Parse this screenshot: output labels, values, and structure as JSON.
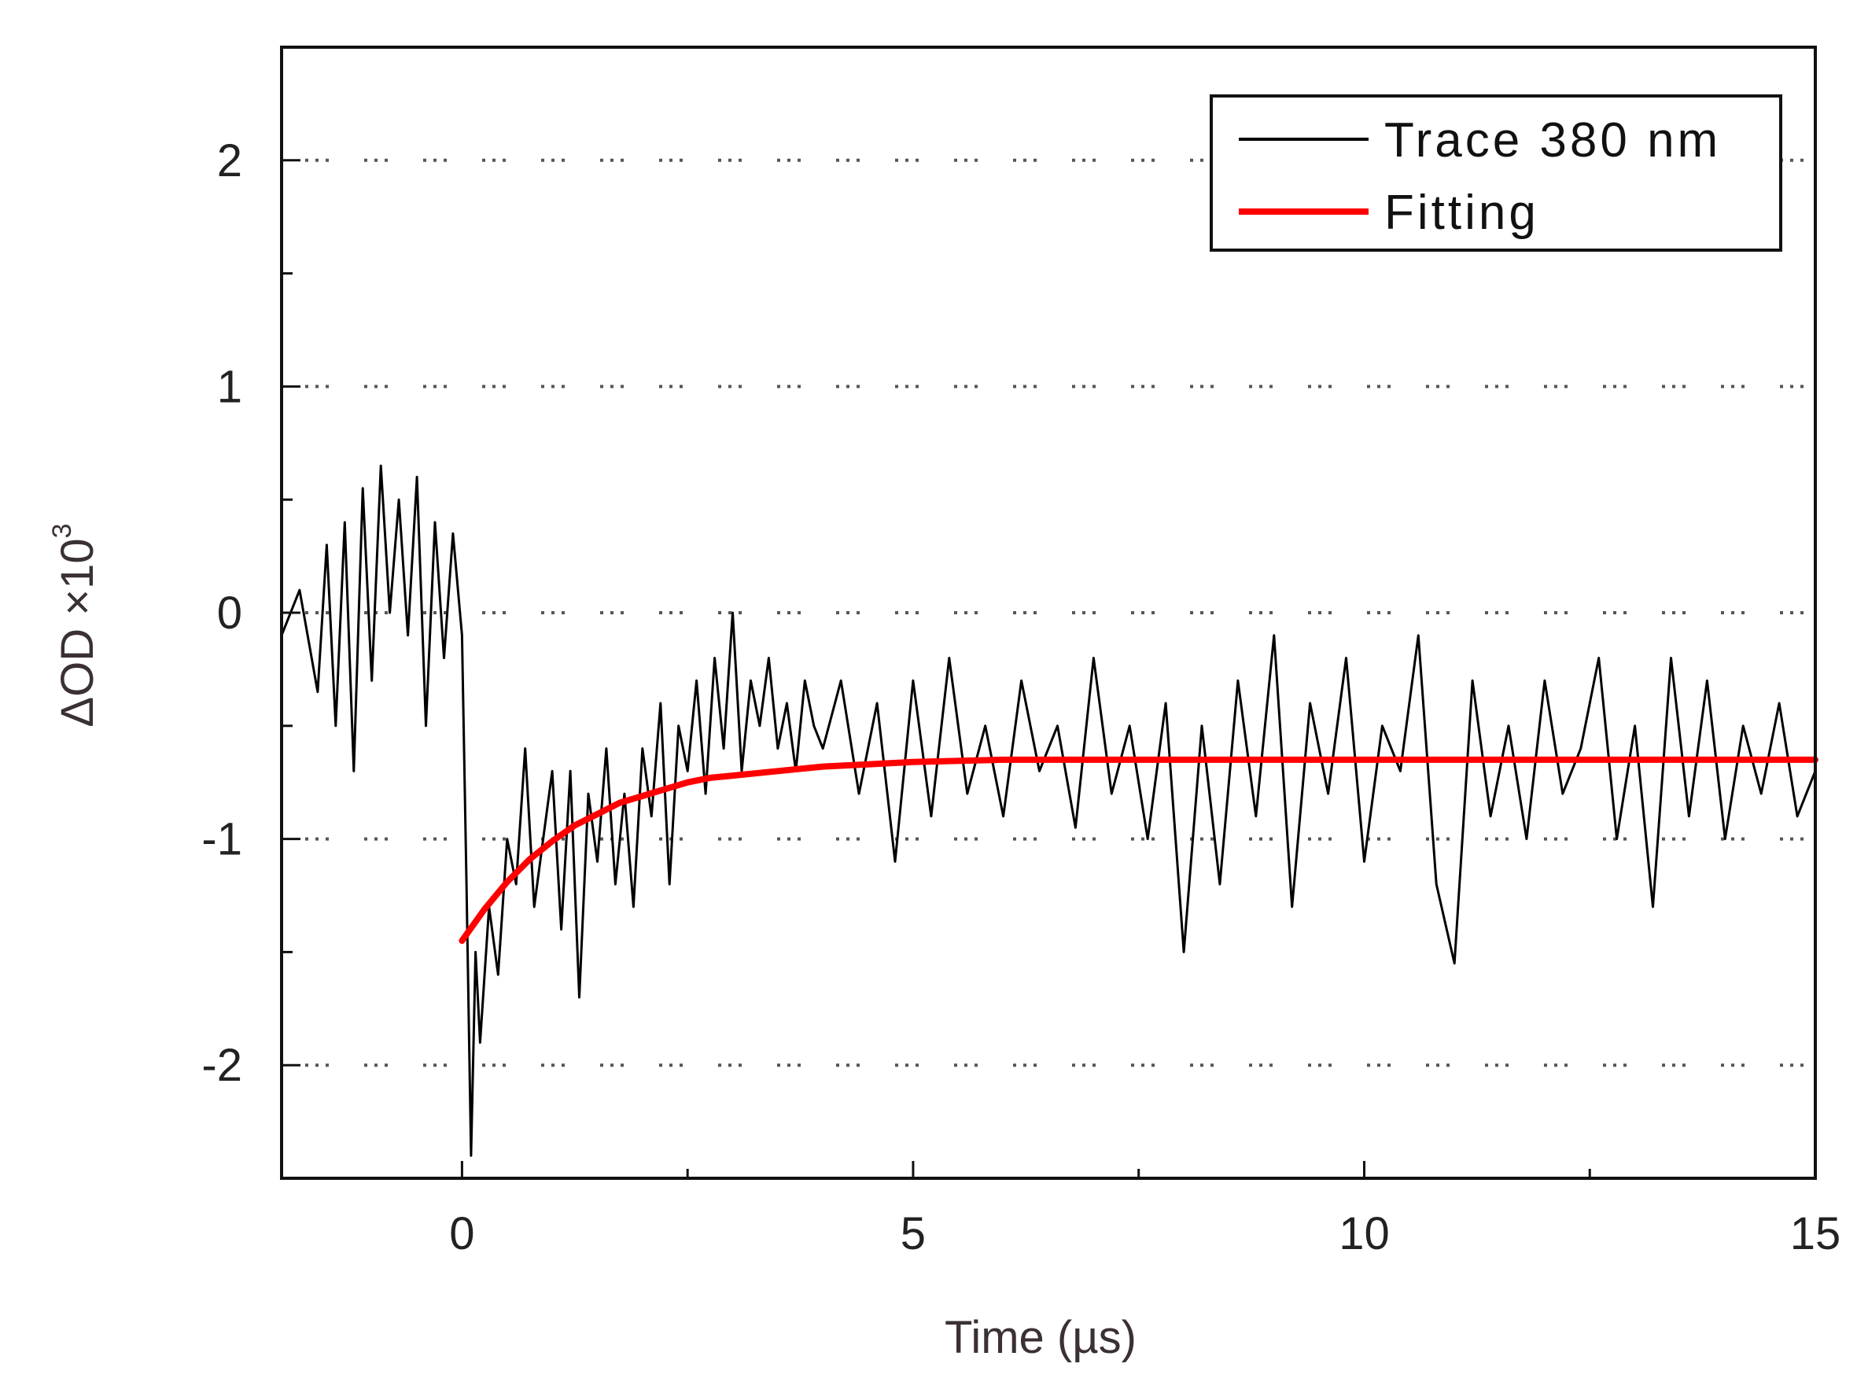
{
  "chart_data": {
    "type": "line",
    "xlabel": "Time (µs)",
    "ylabel": "ΔOD ×10",
    "ylabel_superscript": "3",
    "xlim": [
      -2,
      15
    ],
    "ylim": [
      -2.5,
      2.5
    ],
    "xticks": [
      0,
      5,
      10,
      15
    ],
    "xtick_labels": [
      "0",
      "5",
      "10",
      "15"
    ],
    "yticks": [
      -2,
      -1,
      0,
      1,
      2
    ],
    "ytick_labels": [
      "-2",
      "-1",
      "0",
      "1",
      "2"
    ],
    "grid": "horizontal dotted",
    "legend_position": "top-right",
    "colors": {
      "trace": "#000000",
      "fit": "#ff0000"
    },
    "series": [
      {
        "name": "Trace 380 nm",
        "x": [
          -2.0,
          -1.8,
          -1.6,
          -1.5,
          -1.4,
          -1.3,
          -1.2,
          -1.1,
          -1.0,
          -0.9,
          -0.8,
          -0.7,
          -0.6,
          -0.5,
          -0.4,
          -0.3,
          -0.2,
          -0.1,
          0.0,
          0.05,
          0.1,
          0.15,
          0.2,
          0.3,
          0.4,
          0.5,
          0.6,
          0.7,
          0.8,
          0.9,
          1.0,
          1.1,
          1.2,
          1.3,
          1.4,
          1.5,
          1.6,
          1.7,
          1.8,
          1.9,
          2.0,
          2.1,
          2.2,
          2.3,
          2.4,
          2.5,
          2.6,
          2.7,
          2.8,
          2.9,
          3.0,
          3.1,
          3.2,
          3.3,
          3.4,
          3.5,
          3.6,
          3.7,
          3.8,
          3.9,
          4.0,
          4.2,
          4.4,
          4.6,
          4.8,
          5.0,
          5.2,
          5.4,
          5.6,
          5.8,
          6.0,
          6.2,
          6.4,
          6.6,
          6.8,
          7.0,
          7.2,
          7.4,
          7.6,
          7.8,
          8.0,
          8.2,
          8.4,
          8.6,
          8.8,
          9.0,
          9.2,
          9.4,
          9.6,
          9.8,
          10.0,
          10.2,
          10.4,
          10.6,
          10.8,
          11.0,
          11.2,
          11.4,
          11.6,
          11.8,
          12.0,
          12.2,
          12.4,
          12.6,
          12.8,
          13.0,
          13.2,
          13.4,
          13.6,
          13.8,
          14.0,
          14.2,
          14.4,
          14.6,
          14.8,
          15.0
        ],
        "y": [
          -0.1,
          0.1,
          -0.35,
          0.3,
          -0.5,
          0.4,
          -0.7,
          0.55,
          -0.3,
          0.65,
          0.0,
          0.5,
          -0.1,
          0.6,
          -0.5,
          0.4,
          -0.2,
          0.35,
          -0.1,
          -1.2,
          -2.4,
          -1.5,
          -1.9,
          -1.3,
          -1.6,
          -1.0,
          -1.2,
          -0.6,
          -1.3,
          -1.0,
          -0.7,
          -1.4,
          -0.7,
          -1.7,
          -0.8,
          -1.1,
          -0.6,
          -1.2,
          -0.8,
          -1.3,
          -0.6,
          -0.9,
          -0.4,
          -1.2,
          -0.5,
          -0.7,
          -0.3,
          -0.8,
          -0.2,
          -0.6,
          0.0,
          -0.7,
          -0.3,
          -0.5,
          -0.2,
          -0.6,
          -0.4,
          -0.7,
          -0.3,
          -0.5,
          -0.6,
          -0.3,
          -0.8,
          -0.4,
          -1.1,
          -0.3,
          -0.9,
          -0.2,
          -0.8,
          -0.5,
          -0.9,
          -0.3,
          -0.7,
          -0.5,
          -0.95,
          -0.2,
          -0.8,
          -0.5,
          -1.0,
          -0.4,
          -1.5,
          -0.5,
          -1.2,
          -0.3,
          -0.9,
          -0.1,
          -1.3,
          -0.4,
          -0.8,
          -0.2,
          -1.1,
          -0.5,
          -0.7,
          -0.1,
          -1.2,
          -1.55,
          -0.3,
          -0.9,
          -0.5,
          -1.0,
          -0.3,
          -0.8,
          -0.6,
          -0.2,
          -1.0,
          -0.5,
          -1.3,
          -0.2,
          -0.9,
          -0.3,
          -1.0,
          -0.5,
          -0.8,
          -0.4,
          -0.9,
          -0.7
        ]
      },
      {
        "name": "Fitting",
        "x": [
          0.0,
          0.25,
          0.5,
          0.75,
          1.0,
          1.25,
          1.5,
          1.75,
          2.0,
          2.25,
          2.5,
          2.75,
          3.0,
          3.5,
          4.0,
          4.5,
          5.0,
          6.0,
          7.0,
          8.0,
          9.0,
          10.0,
          11.0,
          12.0,
          13.0,
          14.0,
          15.0
        ],
        "y": [
          -1.45,
          -1.31,
          -1.19,
          -1.09,
          -1.01,
          -0.94,
          -0.89,
          -0.84,
          -0.81,
          -0.78,
          -0.75,
          -0.73,
          -0.72,
          -0.7,
          -0.68,
          -0.67,
          -0.66,
          -0.65,
          -0.65,
          -0.65,
          -0.65,
          -0.65,
          -0.65,
          -0.65,
          -0.65,
          -0.65,
          -0.65
        ]
      }
    ]
  }
}
